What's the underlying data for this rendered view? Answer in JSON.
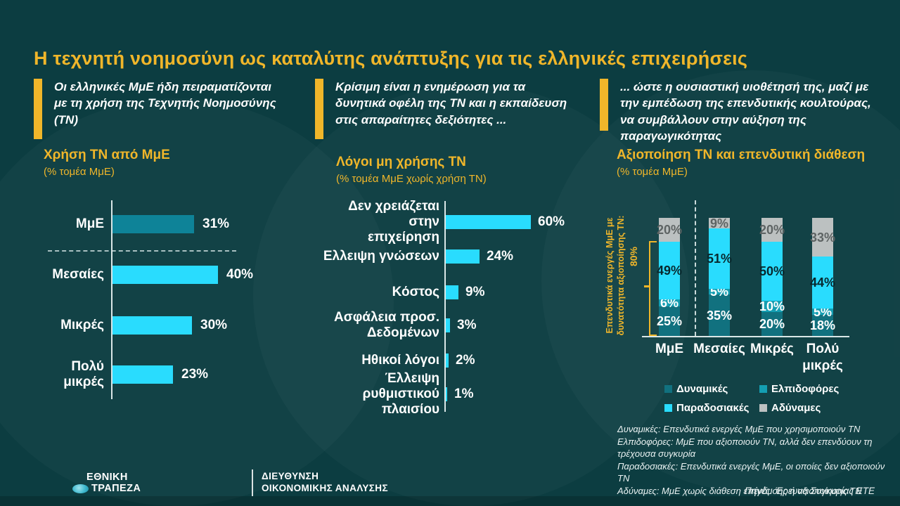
{
  "slide": {
    "title": "Η τεχνητή νοημοσύνη ως καταλύτης ανάπτυξης για τις ελληνικές επιχειρήσεις"
  },
  "colors": {
    "background": "#0C3D41",
    "accent_yellow": "#F0B62A",
    "bright_cyan": "#29DCFE",
    "teal_bar": "#0E8398",
    "axis": "#EBF5F5"
  },
  "headers": [
    {
      "text": "Οι ελληνικές ΜμΕ ήδη πειραματίζονται με τη χρήση της Τεχνητής Νοημοσύνης (ΤΝ)"
    },
    {
      "text": "Κρίσιμη είναι η ενημέρωση για τα δυνητικά οφέλη της ΤΝ και η εκπαίδευση στις απαραίτητες δεξιότητες ..."
    },
    {
      "text": "... ώστε η ουσιαστική υιοθέτησή της, μαζί με την εμπέδωση της επενδυτικής κουλτούρας, να συμβάλλουν στην αύξηση της παραγωγικότητας"
    }
  ],
  "chart_data": [
    {
      "type": "bar",
      "orientation": "horizontal",
      "title": "Χρήση ΤΝ από ΜμΕ",
      "subtitle": "(% τομέα ΜμΕ)",
      "categories": [
        "ΜμΕ",
        "Μεσαίες",
        "Μικρές",
        "Πολύ μικρές"
      ],
      "values": [
        31,
        40,
        30,
        23
      ],
      "value_labels": [
        "31%",
        "40%",
        "30%",
        "23%"
      ],
      "bar_colors": [
        "#0E8398",
        "#29DCFE",
        "#29DCFE",
        "#29DCFE"
      ],
      "separator_after_index": 0,
      "xlim": [
        0,
        100
      ],
      "grid": false
    },
    {
      "type": "bar",
      "orientation": "horizontal",
      "title": "Λόγοι μη χρήσης ΤΝ",
      "subtitle": "(%  τομέα ΜμΕ χωρίς χρήση ΤΝ)",
      "categories": [
        "Δεν χρειάζεται στην\nεπιχείρηση",
        "Ελλειψη γνώσεων",
        "Κόστος",
        "Ασφάλεια προσ.\nΔεδομένων",
        "Ηθικοί λόγοι",
        "Έλλειψη ρυθμιστικού\nπλαισίου"
      ],
      "values": [
        60,
        24,
        9,
        3,
        2,
        1
      ],
      "value_labels": [
        "60%",
        "24%",
        "9%",
        "3%",
        "2%",
        "1%"
      ],
      "bar_color": "#29DCFE",
      "xlim": [
        0,
        100
      ],
      "grid": false
    },
    {
      "type": "bar",
      "variant": "stacked",
      "orientation": "vertical",
      "title": "Αξιοποίηση ΤΝ και επενδυτική διάθεση",
      "subtitle": "(% τομέα ΜμΕ)",
      "categories": [
        "ΜμΕ",
        "Μεσαίες",
        "Μικρές",
        "Πολύ\nμικρές"
      ],
      "series": [
        {
          "name": "Δυναμικές",
          "color": "#11717F",
          "label_color": "#FFFFFF",
          "values": [
            25,
            35,
            20,
            18
          ],
          "value_labels": [
            "25%",
            "35%",
            "20%",
            "18%"
          ]
        },
        {
          "name": "Ελπιδοφόρες",
          "color": "#149EB2",
          "label_color": "#FFFFFF",
          "values": [
            6,
            5,
            10,
            5
          ],
          "value_labels": [
            "6%",
            "5%",
            "10%",
            "5%"
          ]
        },
        {
          "name": "Παραδοσιακές",
          "color": "#29DCFE",
          "label_color": "#08282D",
          "values": [
            49,
            51,
            50,
            44
          ],
          "value_labels": [
            "49%",
            "51%",
            "50%",
            "44%"
          ]
        },
        {
          "name": "Αδύναμες",
          "color": "#BCC1C1",
          "label_color": "#5E6464",
          "values": [
            20,
            9,
            20,
            33
          ],
          "value_labels": [
            "20%",
            "9%",
            "20%",
            "33%"
          ]
        }
      ],
      "annotation": {
        "line1": "Επενδυτικά ενεργές ΜμΕ με",
        "line2": "δυνατότητα αξιοποίησης ΤΝ:",
        "value": "80%"
      },
      "ylim": [
        0,
        100
      ],
      "legend_position": "bottom",
      "grid": false
    }
  ],
  "footnotes": [
    "Δυναμικές: Επενδυτικά ενεργές ΜμΕ που χρησιμοποιούν ΤΝ",
    "Ελπιδοφόρες: ΜμΕ που αξιοποιούν ΤΝ, αλλά δεν επενδύουν τη τρέχουσα συγκυρία",
    "Παραδοσιακές: Επενδυτικά ενεργές ΜμΕ, οι οποίες δεν αξιοποιούν ΤΝ",
    "Αδύναμες: ΜμΕ χωρίς διάθεση επένδυσης ή αξιοποίησης ΤΝ"
  ],
  "source": "Πηγές: Έρευνα Συγκυρίας ΕΤΕ",
  "footer": {
    "brand_line1": "ΕΘΝΙΚΗ",
    "brand_line2": "ΤΡΑΠΕΖΑ",
    "dept_line1": "ΔΙΕΥΘΥΝΣΗ",
    "dept_line2": "ΟΙΚΟΝΟΜΙΚΗΣ ΑΝΑΛΥΣΗΣ"
  }
}
